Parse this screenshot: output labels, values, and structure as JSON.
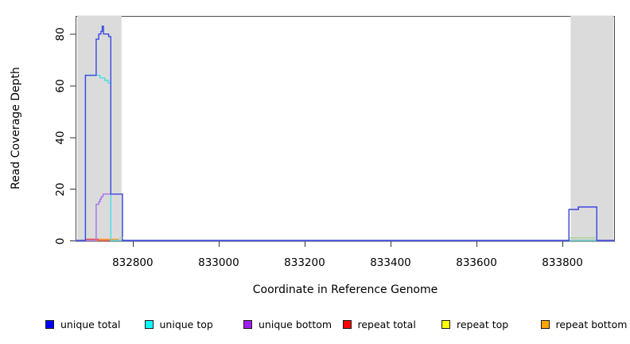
{
  "chart_data": {
    "type": "line",
    "subtype": "step-coverage-plot",
    "title": "",
    "xlabel": "Coordinate in Reference Genome",
    "ylabel": "Read Coverage Depth",
    "xlim": [
      832667,
      833922
    ],
    "ylim": [
      0,
      87
    ],
    "x_ticks": [
      832800,
      833000,
      833200,
      833400,
      833600,
      833800
    ],
    "y_ticks": [
      0,
      20,
      40,
      60,
      80
    ],
    "grid": false,
    "legend_position": "bottom",
    "frame_color": "#4d4d4d",
    "tick_color": "#333333",
    "highlight_regions": [
      {
        "x_start": 832671,
        "x_end": 832774,
        "color": "#dbdbdb"
      },
      {
        "x_start": 833819,
        "x_end": 833919,
        "color": "#dbdbdb"
      }
    ],
    "series": [
      {
        "name": "repeat top",
        "legend_color": "#FFFF00",
        "line_color": "#F0E24A",
        "steps": [
          [
            832667,
            0
          ]
        ]
      },
      {
        "name": "repeat bottom",
        "legend_color": "#FFA500",
        "line_color": "#FF9E2E",
        "steps": [
          [
            832667,
            0
          ],
          [
            832719,
            0.5
          ],
          [
            832766,
            0
          ]
        ]
      },
      {
        "name": "repeat total",
        "legend_color": "#FF0000",
        "line_color": "#E85050",
        "steps": [
          [
            832667,
            0
          ],
          [
            832691,
            0.5
          ],
          [
            832719,
            0
          ]
        ]
      },
      {
        "name": "unique top",
        "legend_color": "#00FFFF",
        "line_color": "#4ADDE8",
        "steps": [
          [
            832667,
            0
          ],
          [
            832690,
            64
          ],
          [
            832724,
            63
          ],
          [
            832735,
            62
          ],
          [
            832743,
            61
          ],
          [
            832749,
            0
          ]
        ]
      },
      {
        "name": "unique bottom",
        "legend_color": "#A020F0",
        "line_color": "#A770F0",
        "steps": [
          [
            832667,
            0
          ],
          [
            832715,
            14
          ],
          [
            832721,
            15
          ],
          [
            832724,
            16
          ],
          [
            832727,
            17
          ],
          [
            832731,
            18
          ],
          [
            832776,
            0
          ],
          [
            833815,
            12
          ],
          [
            833837,
            13
          ],
          [
            833880,
            0
          ]
        ]
      },
      {
        "name": "unique total",
        "legend_color": "#0000FF",
        "line_color": "#3A49E2",
        "steps": [
          [
            832667,
            0
          ],
          [
            832690,
            64
          ],
          [
            832715,
            78
          ],
          [
            832721,
            80
          ],
          [
            832726,
            81
          ],
          [
            832729,
            83
          ],
          [
            832732,
            80
          ],
          [
            832744,
            79
          ],
          [
            832749,
            18
          ],
          [
            832776,
            0
          ],
          [
            833815,
            12
          ],
          [
            833837,
            13
          ],
          [
            833880,
            0
          ]
        ]
      }
    ],
    "overlap_segments": [
      {
        "x_start": 833816,
        "x_end": 833877,
        "y": 1,
        "color": "#9CD489"
      },
      {
        "x_start": 832769,
        "x_end": 832777,
        "y": 1,
        "color": "#9CD489"
      }
    ]
  },
  "legend": {
    "items": [
      {
        "label": "unique total",
        "color": "#0000FF"
      },
      {
        "label": "unique top",
        "color": "#00FFFF"
      },
      {
        "label": "unique bottom",
        "color": "#A020F0"
      },
      {
        "label": "repeat total",
        "color": "#FF0000"
      },
      {
        "label": "repeat top",
        "color": "#FFFF00"
      },
      {
        "label": "repeat bottom",
        "color": "#FFA500"
      }
    ]
  }
}
